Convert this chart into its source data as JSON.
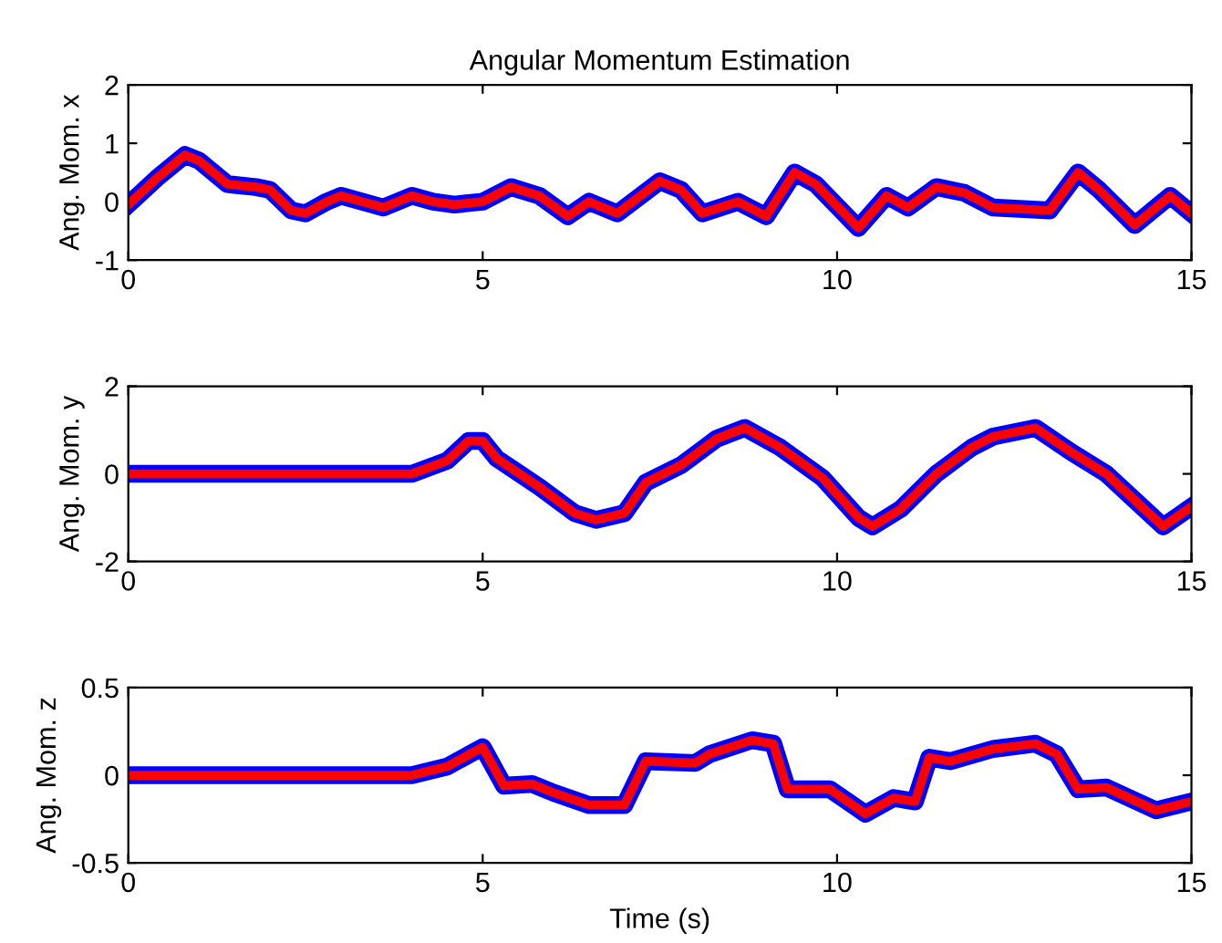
{
  "chart_data": [
    {
      "type": "line",
      "title": "Angular Momentum Estimation",
      "ylabel": "Ang. Mom. x",
      "xlim": [
        0,
        15
      ],
      "xticks": [
        0,
        5,
        10,
        15
      ],
      "ylim": [
        -1,
        2
      ],
      "yticks": [
        -1,
        0,
        1,
        2
      ],
      "grid": false,
      "x": [
        0,
        0.4,
        0.8,
        1.0,
        1.4,
        1.8,
        2.0,
        2.3,
        2.5,
        2.8,
        3.0,
        3.3,
        3.6,
        4.0,
        4.3,
        4.6,
        5.0,
        5.4,
        5.8,
        6.2,
        6.5,
        6.9,
        7.5,
        7.8,
        8.1,
        8.6,
        9.0,
        9.4,
        9.7,
        10.3,
        10.7,
        11.0,
        11.4,
        11.8,
        12.2,
        13.0,
        13.4,
        13.7,
        14.2,
        14.7,
        15
      ],
      "series": [
        {
          "color": "#0000ff",
          "values": [
            -0.05,
            0.4,
            0.8,
            0.7,
            0.3,
            0.25,
            0.2,
            -0.15,
            -0.2,
            0,
            0.1,
            0,
            -0.1,
            0.1,
            0,
            -0.05,
            0,
            0.25,
            0.1,
            -0.25,
            0,
            -0.2,
            0.35,
            0.2,
            -0.2,
            0,
            -0.25,
            0.5,
            0.3,
            -0.45,
            0.1,
            -0.1,
            0.25,
            0.15,
            -0.1,
            -0.15,
            0.5,
            0.2,
            -0.4,
            0.1,
            -0.2
          ]
        },
        {
          "color": "#ff0000",
          "values": [
            -0.05,
            0.4,
            0.8,
            0.7,
            0.3,
            0.25,
            0.2,
            -0.15,
            -0.2,
            0,
            0.1,
            0,
            -0.1,
            0.1,
            0,
            -0.05,
            0,
            0.25,
            0.1,
            -0.25,
            0,
            -0.2,
            0.35,
            0.2,
            -0.2,
            0,
            -0.25,
            0.5,
            0.3,
            -0.45,
            0.1,
            -0.1,
            0.25,
            0.15,
            -0.1,
            -0.15,
            0.5,
            0.2,
            -0.4,
            0.1,
            -0.2
          ]
        }
      ]
    },
    {
      "type": "line",
      "ylabel": "Ang. Mom. y",
      "xlim": [
        0,
        15
      ],
      "xticks": [
        0,
        5,
        10,
        15
      ],
      "ylim": [
        -2,
        2
      ],
      "yticks": [
        -2,
        0,
        2
      ],
      "grid": false,
      "x": [
        0,
        4,
        4.5,
        4.8,
        5.0,
        5.2,
        5.8,
        6.3,
        6.6,
        7.0,
        7.3,
        7.8,
        8.3,
        8.7,
        9.2,
        9.8,
        10.3,
        10.5,
        10.9,
        11.4,
        11.9,
        12.2,
        12.8,
        13.3,
        13.8,
        14.2,
        14.6,
        15
      ],
      "series": [
        {
          "color": "#0000ff",
          "values": [
            0,
            0,
            0.3,
            0.75,
            0.75,
            0.35,
            -0.3,
            -0.9,
            -1.05,
            -0.9,
            -0.2,
            0.2,
            0.8,
            1.05,
            0.6,
            -0.1,
            -1.0,
            -1.2,
            -0.8,
            0,
            0.6,
            0.85,
            1.05,
            0.5,
            0,
            -0.6,
            -1.2,
            -0.75
          ]
        },
        {
          "color": "#ff0000",
          "values": [
            0,
            0,
            0.3,
            0.75,
            0.75,
            0.35,
            -0.3,
            -0.9,
            -1.05,
            -0.9,
            -0.2,
            0.2,
            0.8,
            1.05,
            0.6,
            -0.1,
            -1.0,
            -1.2,
            -0.8,
            0,
            0.6,
            0.85,
            1.05,
            0.5,
            0,
            -0.6,
            -1.2,
            -0.75
          ]
        }
      ]
    },
    {
      "type": "line",
      "ylabel": "Ang. Mom. z",
      "xlabel": "Time (s)",
      "xlim": [
        0,
        15
      ],
      "xticks": [
        0,
        5,
        10,
        15
      ],
      "ylim": [
        -0.5,
        0.5
      ],
      "yticks": [
        -0.5,
        0,
        0.5
      ],
      "grid": false,
      "x": [
        0,
        4,
        4.5,
        5.0,
        5.3,
        5.7,
        6.0,
        6.5,
        7.0,
        7.3,
        8,
        8.2,
        8.8,
        9.1,
        9.3,
        9.9,
        10.4,
        10.8,
        11.1,
        11.3,
        11.6,
        12.2,
        12.8,
        13.1,
        13.4,
        13.8,
        14.5,
        15
      ],
      "series": [
        {
          "color": "#0000ff",
          "values": [
            0,
            0,
            0.05,
            0.16,
            -0.06,
            -0.05,
            -0.1,
            -0.17,
            -0.17,
            0.08,
            0.07,
            0.12,
            0.2,
            0.18,
            -0.08,
            -0.08,
            -0.22,
            -0.13,
            -0.15,
            0.1,
            0.08,
            0.15,
            0.18,
            0.12,
            -0.08,
            -0.07,
            -0.2,
            -0.15
          ]
        },
        {
          "color": "#ff0000",
          "values": [
            0,
            0,
            0.05,
            0.16,
            -0.06,
            -0.05,
            -0.1,
            -0.17,
            -0.17,
            0.08,
            0.07,
            0.12,
            0.2,
            0.18,
            -0.08,
            -0.08,
            -0.22,
            -0.13,
            -0.15,
            0.1,
            0.08,
            0.15,
            0.18,
            0.12,
            -0.08,
            -0.07,
            -0.2,
            -0.15
          ]
        }
      ]
    }
  ]
}
